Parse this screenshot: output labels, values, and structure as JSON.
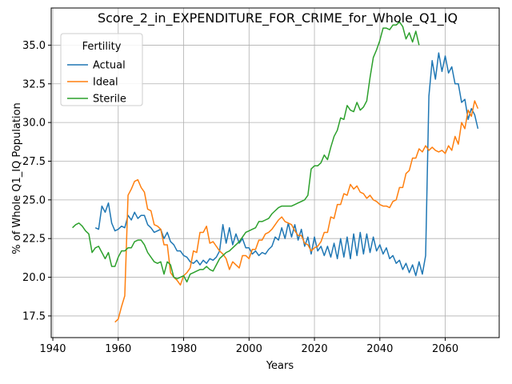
{
  "chart_data": {
    "type": "line",
    "title": "Score_2_in_EXPENDITURE_FOR_CRIME_for_Whole_Q1_IQ",
    "xlabel": "Years",
    "ylabel": "% of Whole Q1_IQ Population",
    "xlim": [
      1939.5,
      2076.5
    ],
    "ylim": [
      16.1,
      37.4
    ],
    "xticks": [
      1940,
      1960,
      1980,
      2000,
      2020,
      2040,
      2060
    ],
    "yticks": [
      17.5,
      20.0,
      22.5,
      25.0,
      27.5,
      30.0,
      32.5,
      35.0
    ],
    "grid": true,
    "legend": {
      "title": "Fertility",
      "placement": "top-left"
    },
    "series": [
      {
        "name": "Actual",
        "color": "#1f77b4",
        "x": [
          1953,
          1954,
          1955,
          1956,
          1957,
          1958,
          1959,
          1960,
          1961,
          1962,
          1963,
          1964,
          1965,
          1966,
          1967,
          1968,
          1969,
          1970,
          1971,
          1972,
          1973,
          1974,
          1975,
          1976,
          1977,
          1978,
          1979,
          1980,
          1981,
          1982,
          1983,
          1984,
          1985,
          1986,
          1987,
          1988,
          1989,
          1990,
          1991,
          1992,
          1993,
          1994,
          1995,
          1996,
          1997,
          1998,
          1999,
          2000,
          2001,
          2002,
          2003,
          2004,
          2005,
          2006,
          2007,
          2008,
          2009,
          2010,
          2011,
          2012,
          2013,
          2014,
          2015,
          2016,
          2017,
          2018,
          2019,
          2020,
          2021,
          2022,
          2023,
          2024,
          2025,
          2026,
          2027,
          2028,
          2029,
          2030,
          2031,
          2032,
          2033,
          2034,
          2035,
          2036,
          2037,
          2038,
          2039,
          2040,
          2041,
          2042,
          2043,
          2044,
          2045,
          2046,
          2047,
          2048,
          2049,
          2050,
          2051,
          2052,
          2053,
          2054,
          2055,
          2056,
          2057,
          2058,
          2059,
          2060,
          2061,
          2062,
          2063,
          2064,
          2065,
          2066,
          2067,
          2068,
          2069,
          2070
        ],
        "y": [
          23.2,
          23.1,
          24.6,
          24.2,
          24.8,
          23.5,
          23.0,
          23.1,
          23.3,
          23.2,
          24.0,
          23.7,
          24.2,
          23.8,
          24.0,
          24.0,
          23.4,
          23.2,
          22.9,
          23.0,
          23.1,
          22.5,
          22.9,
          22.3,
          22.1,
          21.7,
          21.7,
          21.4,
          21.3,
          21.0,
          20.9,
          21.1,
          20.8,
          21.1,
          20.9,
          21.2,
          21.1,
          21.3,
          21.7,
          23.4,
          22.2,
          23.2,
          22.1,
          22.8,
          22.2,
          22.5,
          21.9,
          21.9,
          21.5,
          21.7,
          21.4,
          21.6,
          21.5,
          21.8,
          22.0,
          22.6,
          22.4,
          23.2,
          22.5,
          23.5,
          22.6,
          23.4,
          22.4,
          23.1,
          22.0,
          22.6,
          21.5,
          22.6,
          21.7,
          22.0,
          21.4,
          22.0,
          21.3,
          22.2,
          21.2,
          22.5,
          21.3,
          22.6,
          21.2,
          22.8,
          21.4,
          22.9,
          21.5,
          22.8,
          21.6,
          22.6,
          21.7,
          22.1,
          21.5,
          21.9,
          21.2,
          21.4,
          20.9,
          21.1,
          20.5,
          20.9,
          20.3,
          20.8,
          20.1,
          21.0,
          20.2,
          21.4,
          31.7,
          34.0,
          32.8,
          34.5,
          33.3,
          34.3,
          33.2,
          33.6,
          32.5,
          32.5,
          31.3,
          31.5,
          30.2,
          30.9,
          30.5,
          29.6
        ]
      },
      {
        "name": "Ideal",
        "color": "#ff7f0e",
        "x": [
          1959,
          1960,
          1961,
          1962,
          1963,
          1964,
          1965,
          1966,
          1967,
          1968,
          1969,
          1970,
          1971,
          1972,
          1973,
          1974,
          1975,
          1976,
          1977,
          1978,
          1979,
          1980,
          1981,
          1982,
          1983,
          1984,
          1985,
          1986,
          1987,
          1988,
          1989,
          1990,
          1991,
          1992,
          1993,
          1994,
          1995,
          1996,
          1997,
          1998,
          1999,
          2000,
          2001,
          2002,
          2003,
          2004,
          2005,
          2006,
          2007,
          2008,
          2009,
          2010,
          2011,
          2012,
          2013,
          2014,
          2015,
          2016,
          2017,
          2018,
          2019,
          2020,
          2021,
          2022,
          2023,
          2024,
          2025,
          2026,
          2027,
          2028,
          2029,
          2030,
          2031,
          2032,
          2033,
          2034,
          2035,
          2036,
          2037,
          2038,
          2039,
          2040,
          2041,
          2042,
          2043,
          2044,
          2045,
          2046,
          2047,
          2048,
          2049,
          2050,
          2051,
          2052,
          2053,
          2054,
          2055,
          2056,
          2057,
          2058,
          2059,
          2060,
          2061,
          2062,
          2063,
          2064,
          2065,
          2066,
          2067,
          2068,
          2069,
          2070
        ],
        "y": [
          17.1,
          17.3,
          18.1,
          18.8,
          25.3,
          25.7,
          26.2,
          26.3,
          25.8,
          25.5,
          24.4,
          24.3,
          23.4,
          23.3,
          23.1,
          22.1,
          22.1,
          20.3,
          20.0,
          19.8,
          19.5,
          20.1,
          20.3,
          20.6,
          21.7,
          21.6,
          22.9,
          22.9,
          23.3,
          22.2,
          22.3,
          22.0,
          21.7,
          21.5,
          21.2,
          20.5,
          21.0,
          20.8,
          20.6,
          21.4,
          21.4,
          21.2,
          21.8,
          21.8,
          22.4,
          22.4,
          22.8,
          22.9,
          23.1,
          23.4,
          23.7,
          23.9,
          23.6,
          23.5,
          23.4,
          23.0,
          22.7,
          22.7,
          22.2,
          22.1,
          21.7,
          21.9,
          22.0,
          22.3,
          22.9,
          22.9,
          23.9,
          23.8,
          24.7,
          24.7,
          25.4,
          25.3,
          26.0,
          25.7,
          25.9,
          25.5,
          25.4,
          25.1,
          25.3,
          25.0,
          24.9,
          24.7,
          24.6,
          24.6,
          24.5,
          24.9,
          25.0,
          25.8,
          25.8,
          26.7,
          26.9,
          27.7,
          27.7,
          28.3,
          28.1,
          28.5,
          28.2,
          28.4,
          28.2,
          28.1,
          28.2,
          28.0,
          28.5,
          28.2,
          29.1,
          28.6,
          30.0,
          29.6,
          30.8,
          30.4,
          31.4,
          30.9
        ]
      },
      {
        "name": "Sterile",
        "color": "#2ca02c",
        "x": [
          1946,
          1947,
          1948,
          1949,
          1950,
          1951,
          1952,
          1953,
          1954,
          1955,
          1956,
          1957,
          1958,
          1959,
          1960,
          1961,
          1962,
          1963,
          1964,
          1965,
          1966,
          1967,
          1968,
          1969,
          1970,
          1971,
          1972,
          1973,
          1974,
          1975,
          1976,
          1977,
          1978,
          1979,
          1980,
          1981,
          1982,
          1983,
          1984,
          1985,
          1986,
          1987,
          1988,
          1989,
          1990,
          1991,
          1992,
          1993,
          1994,
          1995,
          1996,
          1997,
          1998,
          1999,
          2000,
          2001,
          2002,
          2003,
          2004,
          2005,
          2006,
          2007,
          2008,
          2009,
          2010,
          2011,
          2012,
          2013,
          2014,
          2015,
          2016,
          2017,
          2018,
          2019,
          2020,
          2021,
          2022,
          2023,
          2024,
          2025,
          2026,
          2027,
          2028,
          2029,
          2030,
          2031,
          2032,
          2033,
          2034,
          2035,
          2036,
          2037,
          2038,
          2039,
          2040,
          2041,
          2042,
          2043,
          2044,
          2045,
          2046,
          2047,
          2048,
          2049,
          2050,
          2051,
          2052
        ],
        "y": [
          23.2,
          23.4,
          23.5,
          23.3,
          23.0,
          22.8,
          21.6,
          21.9,
          22.0,
          21.6,
          21.2,
          21.6,
          20.7,
          20.7,
          21.3,
          21.7,
          21.7,
          21.9,
          21.9,
          22.3,
          22.4,
          22.4,
          22.1,
          21.6,
          21.3,
          21.0,
          20.9,
          21.0,
          20.2,
          21.0,
          20.8,
          20.0,
          19.9,
          20.0,
          20.1,
          19.7,
          20.2,
          20.3,
          20.4,
          20.5,
          20.5,
          20.7,
          20.5,
          20.4,
          20.8,
          21.2,
          21.4,
          21.6,
          21.7,
          21.9,
          22.1,
          22.3,
          22.6,
          22.9,
          23.0,
          23.1,
          23.2,
          23.6,
          23.6,
          23.7,
          23.8,
          24.1,
          24.3,
          24.5,
          24.6,
          24.6,
          24.6,
          24.6,
          24.7,
          24.8,
          24.9,
          25.0,
          25.3,
          27.0,
          27.2,
          27.2,
          27.4,
          27.9,
          27.6,
          28.4,
          29.1,
          29.5,
          30.3,
          30.2,
          31.1,
          30.8,
          30.7,
          31.3,
          30.8,
          31.0,
          31.4,
          32.9,
          34.2,
          34.7,
          35.3,
          36.1,
          36.1,
          36.0,
          36.3,
          36.3,
          36.5,
          36.2,
          35.4,
          35.8,
          35.2,
          35.9,
          35.0
        ]
      }
    ]
  }
}
